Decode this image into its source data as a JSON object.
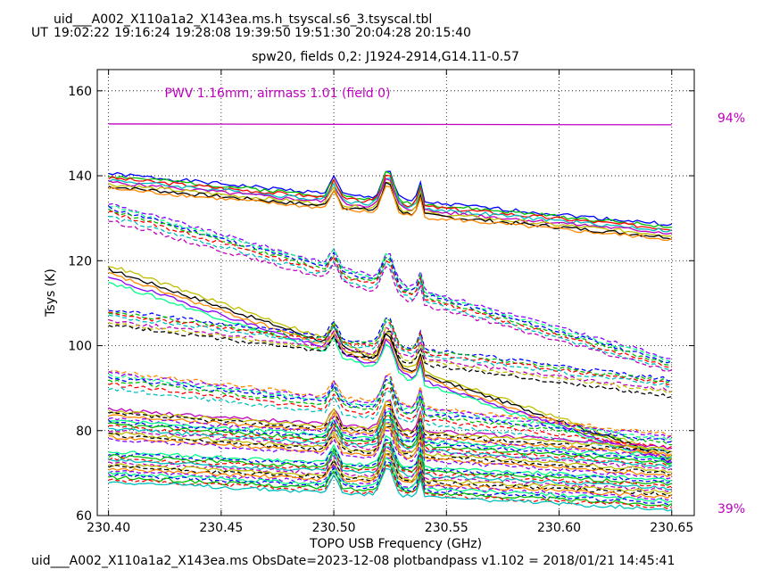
{
  "header": {
    "table_title": "uid___A002_X110a1a2_X143ea.ms.h_tsyscal.s6_3.tsyscal.tbl",
    "ut_label": "UT",
    "ut_times": [
      "19:02:22",
      "19:16:24",
      "19:28:08",
      "19:39:50",
      "19:51:30",
      "20:04:28",
      "20:15:40"
    ],
    "subtitle": "spw20,  fields 0,2: J1924-2914,G14.11-0.57"
  },
  "footer": {
    "text": "uid___A002_X110a1a2_X143ea.ms  ObsDate=2023-12-08   plotbandpass v1.102 = 2018/01/21 14:45:41"
  },
  "colors": {
    "magenta": "#bf00bf",
    "series_palette": [
      "#0000ff",
      "#00bf00",
      "#ff0000",
      "#00bfbf",
      "#bf00bf",
      "#bfbf00",
      "#000000",
      "#ff8800",
      "#8800ff",
      "#00ff88"
    ]
  },
  "chart_data": {
    "type": "line",
    "xlabel": "TOPO USB Frequency (GHz)",
    "ylabel": "Tsys (K)",
    "xlim": [
      230.395,
      230.66
    ],
    "ylim": [
      60,
      165
    ],
    "xticks": [
      230.4,
      230.45,
      230.5,
      230.55,
      230.6,
      230.65
    ],
    "xtick_labels": [
      "230.40",
      "230.45",
      "230.50",
      "230.55",
      "230.60",
      "230.65"
    ],
    "yticks": [
      60,
      80,
      100,
      120,
      140,
      160
    ],
    "ytick_labels": [
      "60",
      "80",
      "100",
      "120",
      "140",
      "160"
    ],
    "grid": true,
    "annotation": "PWV 1.16mm, airmass 1.01 (field 0)",
    "atm_transmission": {
      "right_axis_top": "94%",
      "right_axis_bottom": "39%",
      "curve_y": [
        152.2,
        152.0
      ]
    },
    "x_range": [
      230.4,
      230.65
    ],
    "lines": [
      {
        "y": [
          140.5,
          128.5
        ],
        "style": "solid"
      },
      {
        "y": [
          140.0,
          128.0
        ],
        "style": "solid"
      },
      {
        "y": [
          139.5,
          127.5
        ],
        "style": "solid"
      },
      {
        "y": [
          139.0,
          127.0
        ],
        "style": "solid"
      },
      {
        "y": [
          138.5,
          126.5
        ],
        "style": "solid"
      },
      {
        "y": [
          138.0,
          126.0
        ],
        "style": "solid"
      },
      {
        "y": [
          137.5,
          125.5
        ],
        "style": "solid"
      },
      {
        "y": [
          137.0,
          125.0
        ],
        "style": "solid"
      },
      {
        "y": [
          133.5,
          97.0
        ],
        "style": "dashed"
      },
      {
        "y": [
          133.0,
          96.5
        ],
        "style": "dashed"
      },
      {
        "y": [
          132.5,
          96.0
        ],
        "style": "dashed"
      },
      {
        "y": [
          132.0,
          95.5
        ],
        "style": "dashed"
      },
      {
        "y": [
          131.5,
          95.0
        ],
        "style": "dashed"
      },
      {
        "y": [
          130.5,
          94.5
        ],
        "style": "dashed"
      },
      {
        "y": [
          129.5,
          94.0
        ],
        "style": "dashed"
      },
      {
        "y": [
          119.0,
          74.0
        ],
        "style": "solid"
      },
      {
        "y": [
          118.0,
          73.5
        ],
        "style": "solid"
      },
      {
        "y": [
          117.0,
          73.0
        ],
        "style": "solid"
      },
      {
        "y": [
          116.0,
          72.5
        ],
        "style": "solid"
      },
      {
        "y": [
          115.0,
          72.0
        ],
        "style": "solid"
      },
      {
        "y": [
          108.5,
          92.0
        ],
        "style": "dashed"
      },
      {
        "y": [
          108.0,
          91.5
        ],
        "style": "dashed"
      },
      {
        "y": [
          107.5,
          91.0
        ],
        "style": "dashed"
      },
      {
        "y": [
          107.0,
          90.5
        ],
        "style": "dashed"
      },
      {
        "y": [
          106.0,
          89.5
        ],
        "style": "dashed"
      },
      {
        "y": [
          105.5,
          89.0
        ],
        "style": "dashed"
      },
      {
        "y": [
          105.0,
          88.0
        ],
        "style": "dashed"
      },
      {
        "y": [
          94.0,
          79.0
        ],
        "style": "dashed"
      },
      {
        "y": [
          93.5,
          78.5
        ],
        "style": "dashed"
      },
      {
        "y": [
          93.0,
          78.0
        ],
        "style": "dashed"
      },
      {
        "y": [
          92.5,
          77.5
        ],
        "style": "dashed"
      },
      {
        "y": [
          92.0,
          77.0
        ],
        "style": "dashed"
      },
      {
        "y": [
          91.0,
          76.0
        ],
        "style": "dashed"
      },
      {
        "y": [
          90.0,
          75.0
        ],
        "style": "dashed"
      },
      {
        "y": [
          85.0,
          76.0
        ],
        "style": "solid"
      },
      {
        "y": [
          84.5,
          75.5
        ],
        "style": "solid"
      },
      {
        "y": [
          84.0,
          75.0
        ],
        "style": "dashed"
      },
      {
        "y": [
          83.5,
          74.5
        ],
        "style": "solid"
      },
      {
        "y": [
          83.0,
          74.0
        ],
        "style": "dashed"
      },
      {
        "y": [
          82.5,
          73.5
        ],
        "style": "solid"
      },
      {
        "y": [
          82.0,
          73.0
        ],
        "style": "dashed"
      },
      {
        "y": [
          81.5,
          72.5
        ],
        "style": "solid"
      },
      {
        "y": [
          81.0,
          72.0
        ],
        "style": "dashed"
      },
      {
        "y": [
          80.5,
          71.5
        ],
        "style": "solid"
      },
      {
        "y": [
          80.0,
          71.0
        ],
        "style": "dashed"
      },
      {
        "y": [
          79.5,
          70.5
        ],
        "style": "solid"
      },
      {
        "y": [
          79.0,
          70.0
        ],
        "style": "dashed"
      },
      {
        "y": [
          78.5,
          69.5
        ],
        "style": "solid"
      },
      {
        "y": [
          78.0,
          69.0
        ],
        "style": "dashed"
      },
      {
        "y": [
          75.0,
          68.5
        ],
        "style": "solid"
      },
      {
        "y": [
          74.5,
          68.0
        ],
        "style": "dashed"
      },
      {
        "y": [
          74.0,
          67.5
        ],
        "style": "solid"
      },
      {
        "y": [
          73.5,
          67.0
        ],
        "style": "dashed"
      },
      {
        "y": [
          73.0,
          66.5
        ],
        "style": "solid"
      },
      {
        "y": [
          72.5,
          66.0
        ],
        "style": "dashed"
      },
      {
        "y": [
          72.0,
          65.5
        ],
        "style": "solid"
      },
      {
        "y": [
          71.5,
          65.0
        ],
        "style": "dashed"
      },
      {
        "y": [
          71.0,
          64.5
        ],
        "style": "solid"
      },
      {
        "y": [
          70.5,
          64.0
        ],
        "style": "dashed"
      },
      {
        "y": [
          70.0,
          63.5
        ],
        "style": "solid"
      },
      {
        "y": [
          69.5,
          63.0
        ],
        "style": "dashed"
      },
      {
        "y": [
          69.0,
          62.5
        ],
        "style": "solid"
      },
      {
        "y": [
          68.5,
          62.0
        ],
        "style": "dashed"
      },
      {
        "y": [
          68.0,
          61.5
        ],
        "style": "solid"
      }
    ]
  }
}
